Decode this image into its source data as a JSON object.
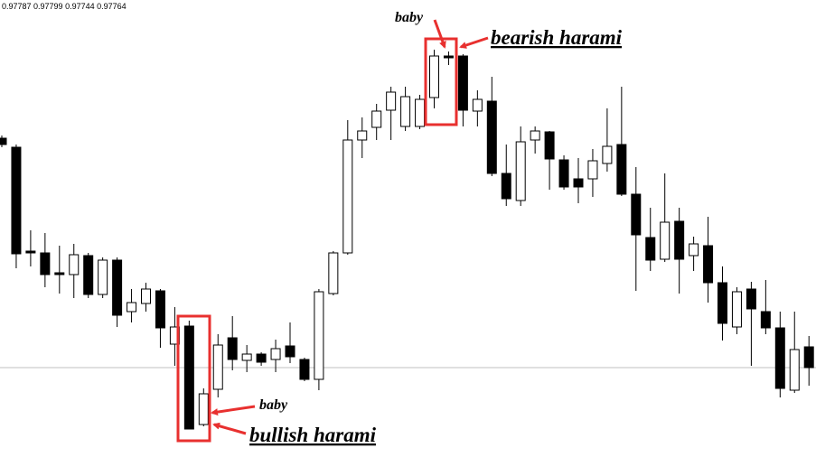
{
  "chart_data": {
    "type": "candlestick",
    "ohlc_label": "0.97787 0.97799 0.97744 0.97764",
    "ylim": [
      0.97644,
      0.98171
    ],
    "price_line": 0.97764,
    "open": [
      0.98018,
      0.98008,
      0.97893,
      0.97891,
      0.97869,
      0.97867,
      0.97888,
      0.97845,
      0.97883,
      0.97826,
      0.97835,
      0.97849,
      0.9779,
      0.9781,
      0.97701,
      0.9774,
      0.97797,
      0.97772,
      0.97779,
      0.97773,
      0.97788,
      0.97773,
      0.97751,
      0.97846,
      0.97891,
      0.98016,
      0.9803,
      0.98049,
      0.98031,
      0.98031,
      0.98063,
      0.98109,
      0.98109,
      0.98048,
      0.98059,
      0.97979,
      0.97949,
      0.98016,
      0.98025,
      0.97994,
      0.97973,
      0.97973,
      0.9799,
      0.98011,
      0.97956,
      0.97908,
      0.97884,
      0.97926,
      0.97888,
      0.97899,
      0.97858,
      0.97809,
      0.97851,
      0.97826,
      0.97808,
      0.97739,
      0.97787
    ],
    "high": [
      0.98021,
      0.98011,
      0.97916,
      0.97913,
      0.97899,
      0.97901,
      0.97891,
      0.97886,
      0.97886,
      0.97851,
      0.97858,
      0.97851,
      0.97831,
      0.97816,
      0.97741,
      0.97801,
      0.97821,
      0.97789,
      0.97781,
      0.97795,
      0.97814,
      0.97775,
      0.97851,
      0.97893,
      0.98038,
      0.98041,
      0.98056,
      0.98075,
      0.98075,
      0.98066,
      0.98116,
      0.98114,
      0.98111,
      0.98071,
      0.98086,
      0.98011,
      0.98031,
      0.98031,
      0.98026,
      0.97999,
      0.97996,
      0.98006,
      0.98051,
      0.98075,
      0.97986,
      0.97941,
      0.97979,
      0.97941,
      0.97909,
      0.97931,
      0.97876,
      0.97853,
      0.97859,
      0.97861,
      0.97826,
      0.97826,
      0.97799
    ],
    "low": [
      0.98008,
      0.97874,
      0.97876,
      0.97853,
      0.97846,
      0.97841,
      0.97841,
      0.97841,
      0.97809,
      0.97814,
      0.97826,
      0.97786,
      0.97766,
      0.97696,
      0.97699,
      0.97731,
      0.97761,
      0.97759,
      0.97766,
      0.97759,
      0.97769,
      0.97749,
      0.97739,
      0.97844,
      0.97889,
      0.97996,
      0.98016,
      0.98016,
      0.98026,
      0.98028,
      0.98051,
      0.98099,
      0.98031,
      0.98031,
      0.97976,
      0.97943,
      0.97943,
      0.98001,
      0.97961,
      0.97961,
      0.97946,
      0.97953,
      0.97981,
      0.97954,
      0.97849,
      0.97871,
      0.97881,
      0.97846,
      0.97871,
      0.97836,
      0.97794,
      0.97801,
      0.97766,
      0.97801,
      0.97731,
      0.97736,
      0.97744
    ],
    "close": [
      0.98011,
      0.9789,
      0.97891,
      0.97867,
      0.97867,
      0.97889,
      0.97845,
      0.97883,
      0.97822,
      0.97836,
      0.97851,
      0.97808,
      0.97809,
      0.97696,
      0.97735,
      0.97789,
      0.97773,
      0.97779,
      0.9777,
      0.97785,
      0.97776,
      0.97751,
      0.97848,
      0.97891,
      0.98016,
      0.98026,
      0.98048,
      0.98069,
      0.98064,
      0.98061,
      0.98109,
      0.98107,
      0.98049,
      0.98061,
      0.97979,
      0.97951,
      0.98014,
      0.98026,
      0.97995,
      0.97964,
      0.97964,
      0.97993,
      0.98009,
      0.97956,
      0.97911,
      0.97883,
      0.97925,
      0.97884,
      0.97901,
      0.97858,
      0.97813,
      0.97848,
      0.97829,
      0.97808,
      0.97741,
      0.97784,
      0.97764
    ],
    "annotations": [
      "baby",
      "bearish harami",
      "baby",
      "bullish harami"
    ]
  }
}
